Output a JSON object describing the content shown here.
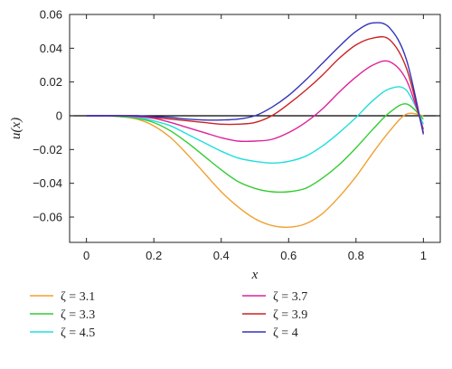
{
  "chart_data": {
    "type": "line",
    "title": "",
    "xlabel": "x",
    "ylabel": "u(x)",
    "xlim": [
      -0.05,
      1.05
    ],
    "ylim": [
      -0.075,
      0.06
    ],
    "x_ticks": [
      "0",
      "0.2",
      "0.4",
      "0.6",
      "0.8",
      "1"
    ],
    "y_ticks": [
      "0.06",
      "0.04",
      "0.02",
      "0",
      "-0.02",
      "-0.04",
      "-0.06"
    ],
    "grid": false,
    "zero_line": true,
    "legend_position": "bottom",
    "x": [
      0,
      0.05,
      0.1,
      0.15,
      0.2,
      0.25,
      0.3,
      0.35,
      0.4,
      0.45,
      0.5,
      0.55,
      0.6,
      0.65,
      0.7,
      0.75,
      0.8,
      0.85,
      0.9,
      0.95,
      1.0
    ],
    "series": [
      {
        "name": "ζ = 3.1",
        "color": "#F0A030",
        "values": [
          0,
          0,
          -0.0005,
          -0.002,
          -0.006,
          -0.013,
          -0.023,
          -0.034,
          -0.045,
          -0.054,
          -0.061,
          -0.065,
          -0.066,
          -0.064,
          -0.058,
          -0.048,
          -0.036,
          -0.022,
          -0.009,
          0.001,
          0
        ]
      },
      {
        "name": "ζ = 3.3",
        "color": "#33CC33",
        "values": [
          0,
          0,
          -0.0005,
          -0.0015,
          -0.004,
          -0.009,
          -0.016,
          -0.024,
          -0.032,
          -0.039,
          -0.043,
          -0.045,
          -0.045,
          -0.043,
          -0.037,
          -0.029,
          -0.019,
          -0.008,
          0.002,
          0.007,
          -0.002
        ]
      },
      {
        "name": "ζ = 4.5",
        "color": "#22DDDD",
        "values": [
          0,
          0,
          0,
          -0.001,
          -0.003,
          -0.006,
          -0.011,
          -0.016,
          -0.021,
          -0.025,
          -0.027,
          -0.028,
          -0.027,
          -0.024,
          -0.018,
          -0.01,
          -0.001,
          0.009,
          0.016,
          0.015,
          -0.005
        ]
      },
      {
        "name": "ζ = 3.7",
        "color": "#DD2299",
        "values": [
          0,
          0,
          0,
          -0.0005,
          -0.0015,
          -0.004,
          -0.007,
          -0.01,
          -0.013,
          -0.015,
          -0.015,
          -0.014,
          -0.01,
          -0.004,
          0.004,
          0.014,
          0.023,
          0.03,
          0.032,
          0.021,
          -0.008
        ]
      },
      {
        "name": "ζ = 3.9",
        "color": "#CC2222",
        "values": [
          0,
          0,
          0,
          0,
          -0.001,
          -0.002,
          -0.003,
          -0.004,
          -0.005,
          -0.005,
          -0.004,
          0.0,
          0.007,
          0.015,
          0.024,
          0.034,
          0.042,
          0.046,
          0.045,
          0.028,
          -0.01
        ]
      },
      {
        "name": "ζ = 4",
        "color": "#3333BB",
        "values": [
          0,
          0,
          0,
          0,
          -0.0005,
          -0.001,
          -0.002,
          -0.0025,
          -0.0025,
          -0.002,
          0.0,
          0.005,
          0.012,
          0.021,
          0.031,
          0.041,
          0.05,
          0.055,
          0.052,
          0.033,
          -0.011
        ]
      }
    ]
  }
}
